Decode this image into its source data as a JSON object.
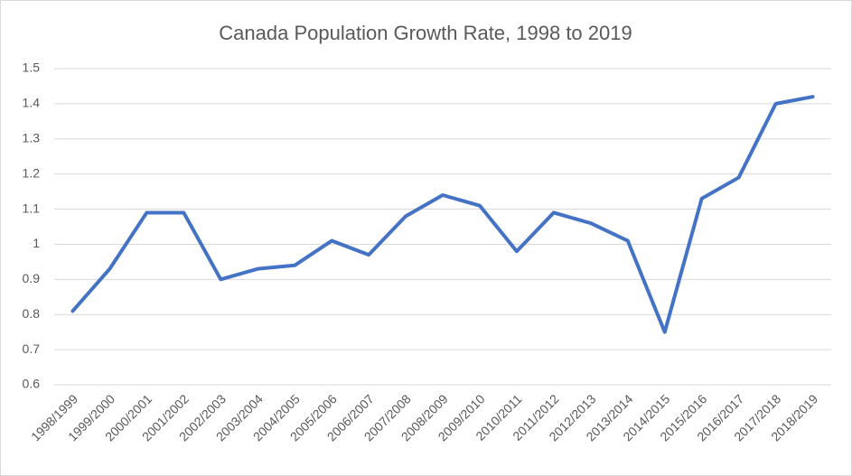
{
  "chart_data": {
    "type": "line",
    "title": "Canada Population Growth Rate, 1998 to 2019",
    "categories": [
      "1998/1999",
      "1999/2000",
      "2000/2001",
      "2001/2002",
      "2002/2003",
      "2003/2004",
      "2004/2005",
      "2005/2006",
      "2006/2007",
      "2007/2008",
      "2008/2009",
      "2009/2010",
      "2010/2011",
      "2011/2012",
      "2012/2013",
      "2013/2014",
      "2014/2015",
      "2015/2016",
      "2016/2017",
      "2017/2018",
      "2018/2019"
    ],
    "values": [
      0.81,
      0.93,
      1.09,
      1.09,
      0.9,
      0.93,
      0.94,
      1.01,
      0.97,
      1.08,
      1.14,
      1.11,
      0.98,
      1.09,
      1.06,
      1.01,
      0.75,
      1.13,
      1.19,
      1.4,
      1.42
    ],
    "color": "#4472c4",
    "ylim": [
      0.6,
      1.5
    ],
    "yticks": [
      0.6,
      0.7,
      0.8,
      0.9,
      1,
      1.1,
      1.2,
      1.3,
      1.4,
      1.5
    ],
    "grid": true
  }
}
